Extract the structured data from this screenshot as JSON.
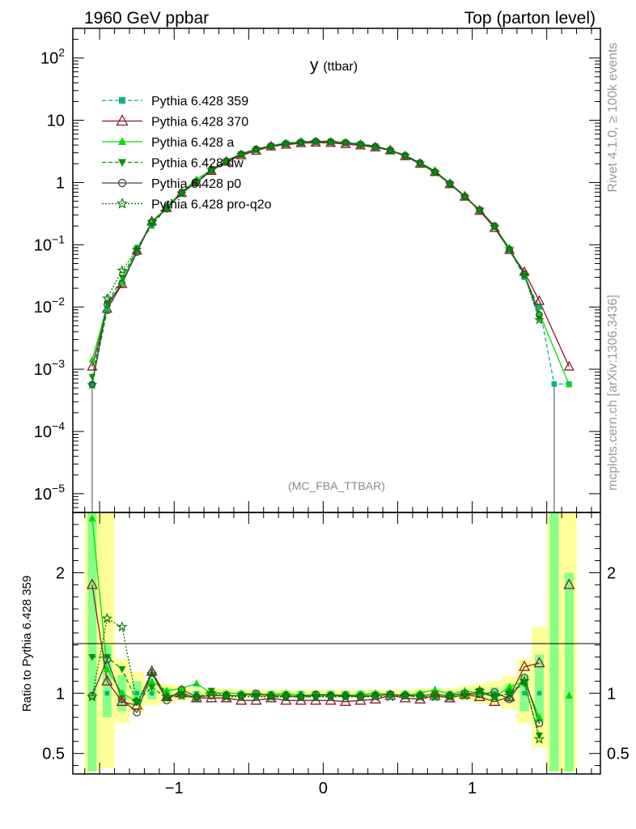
{
  "header": {
    "left": "1960 GeV ppbar",
    "right": "Top (parton level)"
  },
  "side_labels": {
    "rivet": "Rivet 4.1.0, ≥ 100k events",
    "mcplots": "mcplots.cern.ch [arXiv:1306.3436]"
  },
  "colors": {
    "p359": "#00bb77",
    "p370": "#8b1a2a",
    "pa": "#00dd00",
    "pdw": "#009900",
    "pp0": "#444444",
    "pq2o": "#007700",
    "band_yellow": "#ffff99",
    "band_green": "#88ff88"
  },
  "chart_data": [
    {
      "type": "line",
      "title": "y",
      "title_sub": "(ttbar)",
      "watermark": "(MC_FBA_TTBAR)",
      "yscale": "log",
      "ylim": [
        5e-06,
        300
      ],
      "xlim": [
        -1.68,
        1.86
      ],
      "ytick_labels": [
        "10^-5",
        "10^-4",
        "10^-3",
        "10^-2",
        "10^-1",
        "1",
        "10",
        "10^2"
      ],
      "x": [
        -1.55,
        -1.45,
        -1.35,
        -1.25,
        -1.15,
        -1.05,
        -0.95,
        -0.85,
        -0.75,
        -0.65,
        -0.55,
        -0.45,
        -0.35,
        -0.25,
        -0.15,
        -0.05,
        0.05,
        0.15,
        0.25,
        0.35,
        0.45,
        0.55,
        0.65,
        0.75,
        0.85,
        0.95,
        1.05,
        1.15,
        1.25,
        1.35,
        1.45,
        1.55,
        1.65,
        1.75
      ],
      "reference_values": [
        0.00058,
        0.0085,
        0.025,
        0.09,
        0.2,
        0.4,
        0.68,
        1.05,
        1.6,
        2.25,
        2.9,
        3.45,
        3.95,
        4.3,
        4.55,
        4.65,
        4.6,
        4.45,
        4.2,
        3.85,
        3.35,
        2.75,
        2.1,
        1.5,
        0.98,
        0.6,
        0.36,
        0.2,
        0.085,
        0.03,
        0.01,
        0.00058,
        0.00058,
        null
      ],
      "legend_position": "top-left",
      "legend": [
        {
          "label": "Pythia 6.428 359",
          "key": "p359",
          "marker": "square",
          "dash": "dashed"
        },
        {
          "label": "Pythia 6.428 370",
          "key": "p370",
          "marker": "open-triangle",
          "dash": "solid"
        },
        {
          "label": "Pythia 6.428 a",
          "key": "pa",
          "marker": "triangle",
          "dash": "solid"
        },
        {
          "label": "Pythia 6.428 dw",
          "key": "pdw",
          "marker": "triangle-down",
          "dash": "dashed"
        },
        {
          "label": "Pythia 6.428 p0",
          "key": "pp0",
          "marker": "open-circle",
          "dash": "solid"
        },
        {
          "label": "Pythia 6.428 pro-q2o",
          "key": "pq2o",
          "marker": "star",
          "dash": "dotted"
        }
      ]
    },
    {
      "type": "line",
      "ylabel": "Ratio to Pythia 6.428 359",
      "ylim": [
        0.33,
        2.5
      ],
      "xlim": [
        -1.68,
        1.86
      ],
      "ytick_labels": [
        "0.5",
        "1",
        "2"
      ],
      "xtick_labels": [
        "−1",
        "0",
        "1"
      ],
      "x": [
        -1.55,
        -1.45,
        -1.35,
        -1.25,
        -1.15,
        -1.05,
        -0.95,
        -0.85,
        -0.75,
        -0.65,
        -0.55,
        -0.45,
        -0.35,
        -0.25,
        -0.15,
        -0.05,
        0.05,
        0.15,
        0.25,
        0.35,
        0.45,
        0.55,
        0.65,
        0.75,
        0.85,
        0.95,
        1.05,
        1.15,
        1.25,
        1.35,
        1.45,
        1.55,
        1.65
      ],
      "bands": {
        "yellow_lo": [
          0.35,
          0.38,
          0.75,
          0.84,
          0.9,
          0.92,
          0.94,
          0.96,
          0.96,
          0.96,
          0.97,
          0.97,
          0.97,
          0.97,
          0.97,
          0.97,
          0.97,
          0.97,
          0.97,
          0.97,
          0.97,
          0.97,
          0.96,
          0.96,
          0.96,
          0.94,
          0.92,
          0.9,
          0.87,
          0.75,
          0.55,
          0.35,
          0.35
        ],
        "yellow_hi": [
          2.5,
          2.5,
          1.28,
          1.18,
          1.1,
          1.08,
          1.06,
          1.04,
          1.04,
          1.04,
          1.03,
          1.03,
          1.03,
          1.03,
          1.03,
          1.03,
          1.03,
          1.03,
          1.03,
          1.03,
          1.03,
          1.03,
          1.04,
          1.04,
          1.04,
          1.06,
          1.08,
          1.1,
          1.14,
          1.28,
          1.55,
          2.5,
          2.5
        ],
        "green_lo": [
          0.35,
          0.8,
          0.85,
          0.9,
          0.95,
          0.96,
          0.97,
          0.98,
          0.98,
          0.98,
          0.98,
          0.98,
          0.98,
          0.98,
          0.98,
          0.98,
          0.98,
          0.98,
          0.98,
          0.98,
          0.98,
          0.98,
          0.98,
          0.98,
          0.98,
          0.97,
          0.96,
          0.95,
          0.92,
          0.85,
          0.75,
          0.35,
          0.35
        ],
        "green_hi": [
          2.5,
          1.4,
          1.15,
          1.1,
          1.05,
          1.04,
          1.03,
          1.02,
          1.02,
          1.02,
          1.02,
          1.02,
          1.02,
          1.02,
          1.02,
          1.02,
          1.02,
          1.02,
          1.02,
          1.02,
          1.02,
          1.02,
          1.02,
          1.02,
          1.02,
          1.03,
          1.04,
          1.05,
          1.08,
          1.15,
          1.32,
          2.5,
          2.0
        ]
      },
      "series": [
        {
          "name": "Pythia 6.428 370",
          "key": "p370",
          "values": [
            1.9,
            1.1,
            0.93,
            0.9,
            1.18,
            0.97,
            1.0,
            0.96,
            0.96,
            0.96,
            0.94,
            0.94,
            0.96,
            0.94,
            0.94,
            0.94,
            0.94,
            0.93,
            0.94,
            0.95,
            0.98,
            0.96,
            0.95,
            0.98,
            0.96,
            0.99,
            0.97,
            0.93,
            0.97,
            1.22,
            1.25,
            null,
            1.9
          ]
        },
        {
          "name": "Pythia 6.428 a",
          "key": "pa",
          "values": [
            2.45,
            1.2,
            1.0,
            0.93,
            1.1,
            1.02,
            1.04,
            1.08,
            1.0,
            1.0,
            1.0,
            0.99,
            0.99,
            1.0,
            0.98,
            0.99,
            0.99,
            0.98,
            0.99,
            1.0,
            0.99,
            0.98,
            1.0,
            1.03,
            0.99,
            1.02,
            1.0,
            0.97,
            1.05,
            1.1,
            0.8,
            null,
            0.98
          ]
        },
        {
          "name": "Pythia 6.428 dw",
          "key": "pdw",
          "values": [
            1.3,
            1.3,
            1.2,
            0.93,
            1.05,
            0.96,
            0.98,
            0.96,
            1.02,
            0.98,
            0.98,
            0.98,
            0.97,
            0.97,
            0.97,
            0.97,
            0.98,
            0.97,
            0.98,
            0.98,
            0.99,
            0.98,
            0.97,
            0.97,
            0.97,
            0.98,
            1.02,
            0.97,
            1.0,
            1.08,
            0.65,
            null,
            null
          ]
        },
        {
          "name": "Pythia 6.428 p0",
          "key": "pp0",
          "values": [
            0.98,
            1.28,
            0.95,
            0.84,
            1.17,
            0.94,
            1.03,
            0.97,
            0.98,
            0.98,
            0.98,
            1.0,
            0.98,
            0.98,
            0.97,
            0.99,
            0.98,
            0.98,
            0.97,
            0.98,
            0.99,
            0.98,
            0.98,
            0.99,
            0.98,
            1.0,
            0.99,
            1.01,
            0.95,
            1.13,
            0.75,
            null,
            null
          ]
        },
        {
          "name": "Pythia 6.428 pro-q2o",
          "key": "pq2o",
          "values": [
            0.97,
            1.62,
            1.55,
            0.93,
            1.16,
            0.97,
            0.98,
            0.96,
            1.0,
            0.97,
            0.97,
            0.97,
            0.97,
            0.97,
            0.97,
            0.97,
            0.97,
            0.97,
            0.97,
            0.97,
            0.97,
            0.98,
            0.97,
            0.97,
            0.97,
            0.98,
            1.02,
            0.97,
            1.0,
            1.1,
            0.62,
            null,
            null
          ]
        }
      ]
    }
  ]
}
